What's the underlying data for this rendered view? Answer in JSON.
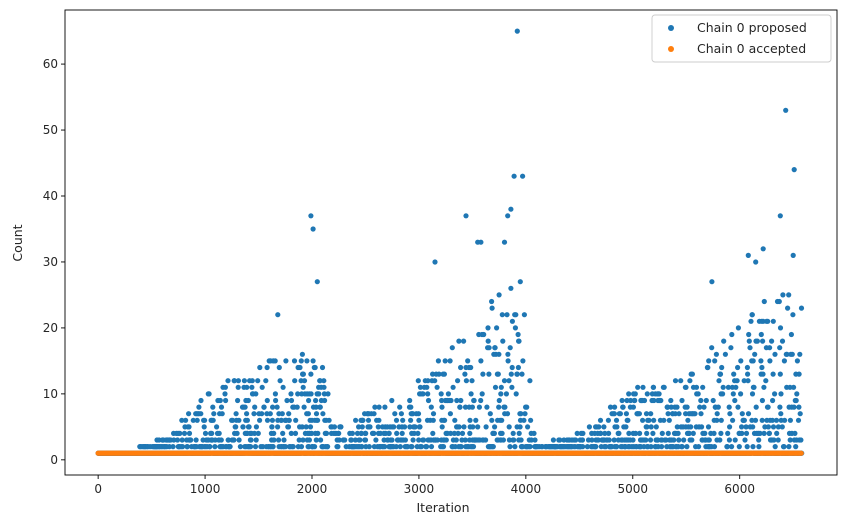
{
  "chart_data": {
    "type": "scatter",
    "title": "",
    "xlabel": "Iteration",
    "ylabel": "Count",
    "xlim": [
      -310,
      6910
    ],
    "ylim": [
      -2.3,
      68.2
    ],
    "xticks": [
      0,
      1000,
      2000,
      3000,
      4000,
      5000,
      6000
    ],
    "yticks": [
      0,
      10,
      20,
      30,
      40,
      50,
      60
    ],
    "grid": false,
    "legend_position": "top-right",
    "colors": {
      "proposed": "#1f77b4",
      "accepted": "#ff7f0e"
    },
    "series": [
      {
        "name": "Chain 0 proposed",
        "color": "#1f77b4",
        "envelope": [
          [
            0,
            1
          ],
          [
            300,
            1
          ],
          [
            450,
            2
          ],
          [
            700,
            4
          ],
          [
            1000,
            10
          ],
          [
            1300,
            13
          ],
          [
            1600,
            15
          ],
          [
            1900,
            17
          ],
          [
            2100,
            15
          ],
          [
            2200,
            5
          ],
          [
            2500,
            7
          ],
          [
            2800,
            9
          ],
          [
            3100,
            13
          ],
          [
            3400,
            20
          ],
          [
            3700,
            25
          ],
          [
            3950,
            27
          ],
          [
            4000,
            25
          ],
          [
            4100,
            2
          ],
          [
            4350,
            3
          ],
          [
            4600,
            5
          ],
          [
            4900,
            10
          ],
          [
            5200,
            12
          ],
          [
            5500,
            13
          ],
          [
            5800,
            18
          ],
          [
            6100,
            22
          ],
          [
            6400,
            27
          ],
          [
            6580,
            24
          ]
        ],
        "outliers": [
          [
            3920,
            65
          ],
          [
            6430,
            53
          ],
          [
            6510,
            44
          ],
          [
            3890,
            43
          ],
          [
            3970,
            43
          ],
          [
            3860,
            38
          ],
          [
            1990,
            37
          ],
          [
            3440,
            37
          ],
          [
            3830,
            37
          ],
          [
            6380,
            37
          ],
          [
            2010,
            35
          ],
          [
            3800,
            33
          ],
          [
            3550,
            33
          ],
          [
            3580,
            33
          ],
          [
            6220,
            32
          ],
          [
            6080,
            31
          ],
          [
            6500,
            31
          ],
          [
            3150,
            30
          ],
          [
            2050,
            27
          ],
          [
            6150,
            30
          ],
          [
            1680,
            22
          ],
          [
            5740,
            27
          ]
        ]
      },
      {
        "name": "Chain 0 accepted",
        "color": "#ff7f0e",
        "x_range": [
          0,
          6580
        ],
        "value": 1
      }
    ]
  }
}
